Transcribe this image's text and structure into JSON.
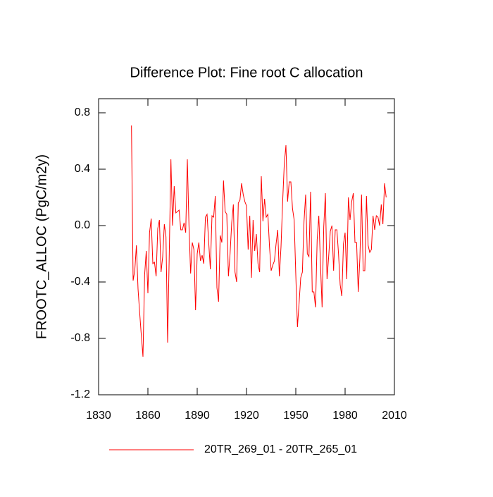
{
  "chart_data": {
    "type": "line",
    "title": "Difference Plot: Fine root C allocation",
    "y_label": "FROOTC_ALLOC  (PgC/m2y)",
    "x": [
      1850,
      1851,
      1852,
      1853,
      1854,
      1855,
      1856,
      1857,
      1858,
      1859,
      1860,
      1861,
      1862,
      1863,
      1864,
      1865,
      1866,
      1867,
      1868,
      1869,
      1870,
      1871,
      1872,
      1873,
      1874,
      1875,
      1876,
      1877,
      1878,
      1879,
      1880,
      1881,
      1882,
      1883,
      1884,
      1885,
      1886,
      1887,
      1888,
      1889,
      1890,
      1891,
      1892,
      1893,
      1894,
      1895,
      1896,
      1897,
      1898,
      1899,
      1900,
      1901,
      1902,
      1903,
      1904,
      1905,
      1906,
      1907,
      1908,
      1909,
      1910,
      1911,
      1912,
      1913,
      1914,
      1915,
      1916,
      1917,
      1918,
      1919,
      1920,
      1921,
      1922,
      1923,
      1924,
      1925,
      1926,
      1927,
      1928,
      1929,
      1930,
      1931,
      1932,
      1933,
      1934,
      1935,
      1936,
      1937,
      1938,
      1939,
      1940,
      1941,
      1942,
      1943,
      1944,
      1945,
      1946,
      1947,
      1948,
      1949,
      1950,
      1951,
      1952,
      1953,
      1954,
      1955,
      1956,
      1957,
      1958,
      1959,
      1960,
      1961,
      1962,
      1963,
      1964,
      1965,
      1966,
      1967,
      1968,
      1969,
      1970,
      1971,
      1972,
      1973,
      1974,
      1975,
      1976,
      1977,
      1978,
      1979,
      1980,
      1981,
      1982,
      1983,
      1984,
      1985,
      1986,
      1987,
      1988,
      1989,
      1990,
      1991,
      1992,
      1993,
      1994,
      1995,
      1996,
      1997,
      1998,
      1999,
      2000,
      2001,
      2002,
      2003,
      2004,
      2005
    ],
    "series": [
      {
        "name": "20TR_269_01 - 20TR_265_01",
        "color": "#ff0000",
        "values": [
          0.71,
          -0.39,
          -0.32,
          -0.14,
          -0.45,
          -0.62,
          -0.78,
          -0.93,
          -0.35,
          -0.18,
          -0.48,
          -0.05,
          0.05,
          -0.27,
          -0.26,
          -0.36,
          -0.02,
          0.04,
          -0.33,
          -0.22,
          0.01,
          -0.08,
          -0.83,
          -0.2,
          0.47,
          0.0,
          0.28,
          0.09,
          0.1,
          0.11,
          -0.03,
          -0.03,
          0.02,
          -0.05,
          0.47,
          0.0,
          -0.34,
          -0.12,
          -0.17,
          -0.6,
          -0.2,
          -0.12,
          -0.25,
          -0.21,
          -0.27,
          0.06,
          0.08,
          -0.12,
          -0.31,
          0.07,
          0.06,
          0.21,
          -0.44,
          -0.54,
          -0.07,
          -0.12,
          0.32,
          0.1,
          0.08,
          -0.36,
          -0.2,
          0.02,
          0.15,
          -0.33,
          -0.4,
          0.16,
          0.18,
          0.3,
          0.22,
          0.17,
          0.14,
          -0.17,
          0.07,
          -0.37,
          0.04,
          -0.18,
          -0.06,
          -0.27,
          -0.33,
          0.35,
          0.03,
          0.19,
          0.06,
          0.08,
          -0.15,
          -0.32,
          -0.28,
          -0.25,
          -0.13,
          -0.03,
          -0.36,
          -0.15,
          0.17,
          0.44,
          0.57,
          0.17,
          0.31,
          0.31,
          0.12,
          0.04,
          -0.35,
          -0.72,
          -0.55,
          -0.37,
          -0.33,
          0.03,
          0.22,
          -0.2,
          -0.22,
          0.24,
          -0.47,
          -0.47,
          -0.58,
          -0.1,
          0.07,
          -0.27,
          -0.58,
          -0.01,
          0.23,
          -0.38,
          -0.22,
          -0.04,
          0.0,
          -0.32,
          -0.03,
          -0.03,
          -0.2,
          -0.42,
          -0.5,
          -0.13,
          -0.05,
          -0.38,
          0.2,
          0.04,
          0.17,
          0.23,
          -0.12,
          -0.12,
          -0.47,
          -0.23,
          0.22,
          -0.32,
          -0.32,
          0.21,
          -0.14,
          -0.19,
          -0.17,
          0.07,
          -0.03,
          0.07,
          0.06,
          0.0,
          0.15,
          0.01,
          0.3,
          0.2
        ]
      }
    ],
    "xlim": [
      1830,
      2010
    ],
    "xticks": [
      1830,
      1860,
      1890,
      1920,
      1950,
      1980,
      2010
    ],
    "ylim": [
      -1.2,
      0.9
    ],
    "yticks": [
      0.8,
      0.4,
      {
        "value": 0,
        "label": "0.0"
      },
      -0.4,
      -0.8,
      -1.2
    ],
    "legend": "bottom"
  }
}
